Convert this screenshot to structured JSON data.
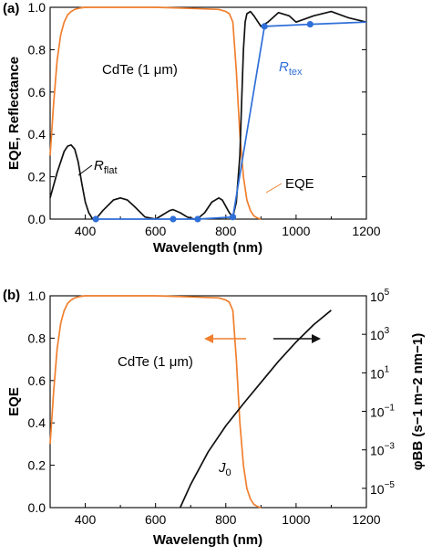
{
  "colors": {
    "orange": "#f07f2e",
    "blue": "#2f6fd8",
    "black": "#111111"
  },
  "chart_data": [
    {
      "panel": "(a)",
      "type": "line",
      "xlabel": "Wavelength (nm)",
      "ylabel": "EQE, Reflectance",
      "xlim": [
        300,
        1200
      ],
      "ylim": [
        0,
        1.0
      ],
      "xticks": [
        400,
        600,
        800,
        1000,
        1200
      ],
      "yticks": [
        0.0,
        0.2,
        0.4,
        0.6,
        0.8,
        1.0
      ],
      "xtick_labels": [
        "400",
        "600",
        "800",
        "1000",
        "1200"
      ],
      "ytick_labels": [
        "0.0",
        "0.2",
        "0.4",
        "0.6",
        "0.8",
        "1.0"
      ],
      "annotations": {
        "material": "CdTe (1 μm)",
        "rflat_base": "R",
        "rflat_sub": "flat",
        "rtex_base": "R",
        "rtex_sub": "tex",
        "eqe": "EQE"
      },
      "series": [
        {
          "name": "EQE",
          "color": "orange",
          "x": [
            300,
            310,
            320,
            330,
            340,
            350,
            360,
            370,
            380,
            390,
            400,
            450,
            500,
            600,
            700,
            780,
            800,
            810,
            820,
            830,
            840,
            850,
            860,
            870,
            880,
            890,
            900
          ],
          "y": [
            0.3,
            0.55,
            0.75,
            0.87,
            0.93,
            0.965,
            0.98,
            0.99,
            0.995,
            0.998,
            1.0,
            1.0,
            1.0,
            1.0,
            0.995,
            0.99,
            0.98,
            0.97,
            0.93,
            0.7,
            0.4,
            0.2,
            0.09,
            0.04,
            0.015,
            0.005,
            0.0
          ]
        },
        {
          "name": "R_flat",
          "color": "black",
          "x": [
            300,
            320,
            340,
            350,
            360,
            370,
            380,
            390,
            400,
            410,
            420,
            430,
            450,
            480,
            500,
            520,
            540,
            570,
            600,
            620,
            640,
            650,
            670,
            690,
            710,
            720,
            740,
            760,
            780,
            790,
            800,
            810,
            820,
            830,
            840,
            845,
            850,
            855,
            860,
            870,
            880,
            900,
            920,
            950,
            980,
            1000,
            1050,
            1100,
            1150,
            1200
          ],
          "y": [
            0.1,
            0.22,
            0.32,
            0.345,
            0.35,
            0.33,
            0.27,
            0.17,
            0.08,
            0.03,
            0.003,
            0.0,
            0.04,
            0.09,
            0.1,
            0.09,
            0.06,
            0.01,
            0.0,
            0.02,
            0.04,
            0.045,
            0.03,
            0.01,
            0.0,
            0.002,
            0.03,
            0.08,
            0.1,
            0.09,
            0.06,
            0.03,
            0.01,
            0.08,
            0.3,
            0.55,
            0.8,
            0.93,
            0.97,
            0.98,
            0.96,
            0.91,
            0.93,
            0.975,
            0.96,
            0.93,
            0.96,
            0.98,
            0.95,
            0.93
          ]
        },
        {
          "name": "R_tex",
          "color": "blue",
          "markers": true,
          "x": [
            430,
            650,
            720,
            820,
            910,
            1040,
            1200
          ],
          "y": [
            0.0,
            0.0,
            0.0,
            0.01,
            0.91,
            0.92,
            0.93
          ]
        }
      ]
    },
    {
      "panel": "(b)",
      "type": "line",
      "xlabel": "Wavelength (nm)",
      "ylabel": "EQE",
      "ylabel_right": "φBB (s−1 m−2 nm−1)",
      "xlim": [
        300,
        1200
      ],
      "ylim": [
        0,
        1.0
      ],
      "ylim_right_log10": [
        -6,
        5
      ],
      "xticks": [
        400,
        600,
        800,
        1000,
        1200
      ],
      "yticks": [
        0.0,
        0.2,
        0.4,
        0.6,
        0.8,
        1.0
      ],
      "xtick_labels": [
        "400",
        "600",
        "800",
        "1000",
        "1200"
      ],
      "ytick_labels": [
        "0.0",
        "0.2",
        "0.4",
        "0.6",
        "0.8",
        "1.0"
      ],
      "yticks_right_log10": [
        5,
        3,
        1,
        -1,
        -3,
        -5
      ],
      "ytick_labels_right": [
        {
          "base": "10",
          "exp": "5"
        },
        {
          "base": "10",
          "exp": "3"
        },
        {
          "base": "10",
          "exp": "1"
        },
        {
          "base": "10",
          "exp": "−1"
        },
        {
          "base": "10",
          "exp": "−3"
        },
        {
          "base": "10",
          "exp": "−5"
        }
      ],
      "annotations": {
        "material": "CdTe (1 μm)",
        "j0_base": "J",
        "j0_sub": "0"
      },
      "series": [
        {
          "name": "EQE",
          "color": "orange",
          "axis": "left",
          "x": [
            300,
            310,
            320,
            330,
            340,
            350,
            360,
            370,
            380,
            390,
            400,
            450,
            500,
            600,
            700,
            780,
            800,
            810,
            820,
            830,
            840,
            850,
            860,
            870,
            880,
            890,
            900
          ],
          "y": [
            0.3,
            0.55,
            0.75,
            0.87,
            0.93,
            0.965,
            0.98,
            0.99,
            0.995,
            0.998,
            1.0,
            1.0,
            1.0,
            1.0,
            0.995,
            0.99,
            0.98,
            0.97,
            0.93,
            0.7,
            0.4,
            0.2,
            0.09,
            0.04,
            0.015,
            0.005,
            0.0
          ]
        },
        {
          "name": "J0",
          "color": "black",
          "axis": "right_log",
          "x": [
            670,
            700,
            750,
            800,
            850,
            900,
            950,
            1000,
            1050,
            1100
          ],
          "y_log10": [
            -6.0,
            -4.8,
            -3.1,
            -1.75,
            -0.6,
            0.5,
            1.6,
            2.6,
            3.5,
            4.25
          ]
        }
      ]
    }
  ]
}
